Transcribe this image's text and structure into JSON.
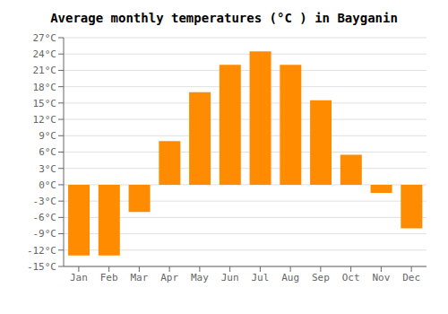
{
  "chart_data": {
    "type": "bar",
    "title": "Average monthly temperatures (°C ) in Bayganin",
    "categories": [
      "Jan",
      "Feb",
      "Mar",
      "Apr",
      "May",
      "Jun",
      "Jul",
      "Aug",
      "Sep",
      "Oct",
      "Nov",
      "Dec"
    ],
    "values": [
      -13,
      -13,
      -5,
      8,
      17,
      22,
      24.5,
      22,
      15.5,
      5.5,
      -1.5,
      -8
    ],
    "color": "#FF8C00",
    "ylim": [
      -15,
      27
    ],
    "yticks": [
      {
        "value": -15,
        "label": "-15°C"
      },
      {
        "value": -12,
        "label": "-12°C"
      },
      {
        "value": -9,
        "label": "-9°C"
      },
      {
        "value": -6,
        "label": "-6°C"
      },
      {
        "value": -3,
        "label": "-3°C"
      },
      {
        "value": 0,
        "label": "0°C"
      },
      {
        "value": 3,
        "label": "3°C"
      },
      {
        "value": 6,
        "label": "6°C"
      },
      {
        "value": 9,
        "label": "9°C"
      },
      {
        "value": 12,
        "label": "12°C"
      },
      {
        "value": 15,
        "label": "15°C"
      },
      {
        "value": 18,
        "label": "18°C"
      },
      {
        "value": 21,
        "label": "21°C"
      },
      {
        "value": 24,
        "label": "24°C"
      },
      {
        "value": 27,
        "label": "27°C"
      }
    ],
    "grid": true
  }
}
